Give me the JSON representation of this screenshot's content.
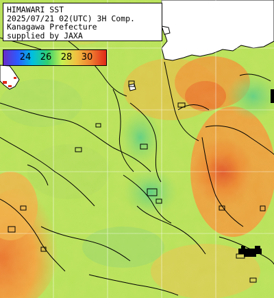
{
  "title": {
    "line1": "HIMAWARI SST",
    "line2": "2025/07/21 02(UTC) 3H Comp.",
    "line3": "Kanagawa Prefecture",
    "line4": "supplied by JAXA"
  },
  "legend": {
    "ticks": [
      "24",
      "26",
      "28",
      "30"
    ],
    "colors": [
      "#6a2cc8",
      "#2a5cff",
      "#00c0e0",
      "#30d070",
      "#c8f050",
      "#f0c040",
      "#f08030",
      "#e02818"
    ]
  },
  "map_colors": {
    "sea_base": "#b8e25a",
    "sea_cool": "#78d878",
    "sea_warm": "#e8b040",
    "sea_hot": "#e8672a",
    "land": "#ffffff",
    "no_data": "#000000"
  }
}
